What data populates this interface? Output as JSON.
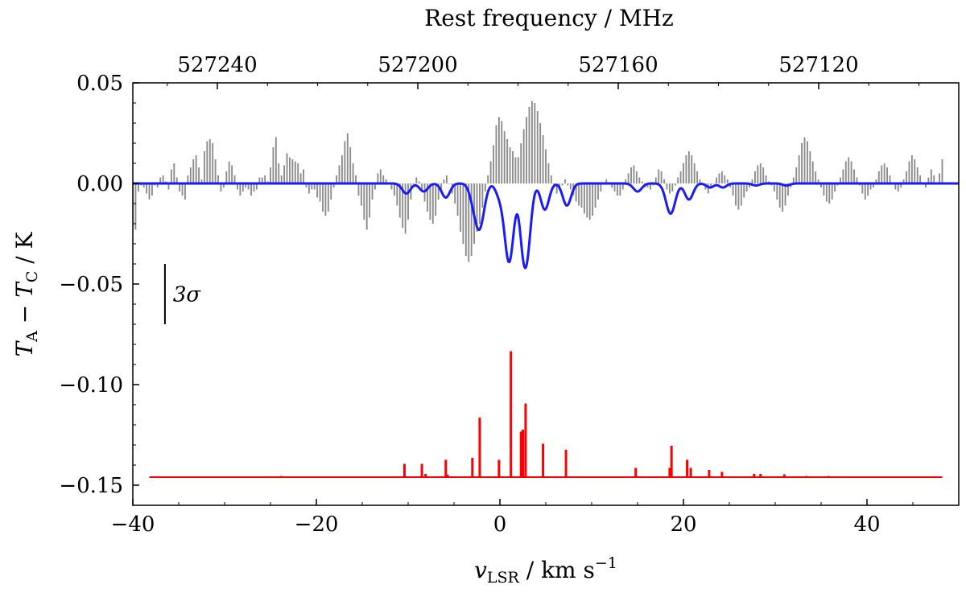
{
  "chart_data": {
    "type": "line",
    "top_axis": {
      "label": "Rest frequency / MHz",
      "ticks": [
        527240,
        527200,
        527160,
        527120
      ],
      "tick_labels": [
        "527240",
        "527200",
        "527160",
        "527120"
      ]
    },
    "bottom_axis": {
      "label": "v_LSR / km s^-1",
      "label_parts": {
        "symbol": "v",
        "sub": "LSR",
        "unit": " / km s",
        "sup": "−1"
      },
      "xlim": [
        -40,
        50
      ],
      "ticks": [
        -40,
        -20,
        0,
        20,
        40
      ],
      "tick_labels": [
        "−40",
        "−20",
        "0",
        "20",
        "40"
      ]
    },
    "left_axis": {
      "label": "T_A − T_C / K",
      "label_parts": {
        "t1": "T",
        "s1": "A",
        "mid": " − ",
        "t2": "T",
        "s2": "C",
        "unit": " / K"
      },
      "ylim": [
        -0.16,
        0.05
      ],
      "ticks": [
        0.05,
        0.0,
        -0.05,
        -0.1,
        -0.15
      ],
      "tick_labels": [
        "0.05",
        "0.00",
        "−0.05",
        "−0.10",
        "−0.15"
      ]
    },
    "sigma_bar": {
      "label": "3σ",
      "x": -36.5,
      "y_top": -0.04,
      "y_bottom": -0.07
    },
    "series": [
      {
        "name": "observed spectrum",
        "style": "histogram",
        "color": "#8c8c8c",
        "x_start": -40.0,
        "x_step": 0.3,
        "values": [
          -0.022,
          -0.023,
          -0.004,
          -0.001,
          -0.002,
          -0.005,
          -0.008,
          -0.006,
          -0.001,
          -0.002,
          0.003,
          0.004,
          0.001,
          -0.003,
          0.007,
          0.01,
          0.003,
          -0.004,
          -0.006,
          -0.008,
          0.004,
          0.008,
          0.012,
          0.014,
          0.008,
          0.002,
          0.016,
          0.021,
          0.022,
          0.02,
          0.012,
          0.004,
          -0.004,
          -0.002,
          0.006,
          0.011,
          0.009,
          0.004,
          -0.003,
          -0.006,
          -0.004,
          -0.002,
          -0.003,
          -0.006,
          -0.004,
          -0.003,
          0.003,
          0.003,
          0.004,
          0.001,
          0.008,
          0.018,
          0.023,
          0.01,
          0.004,
          0.009,
          0.015,
          0.013,
          0.012,
          0.011,
          0.01,
          0.005,
          0.007,
          -0.002,
          -0.005,
          -0.003,
          -0.003,
          -0.007,
          -0.009,
          -0.014,
          -0.016,
          -0.014,
          -0.008,
          -0.002,
          0.004,
          0.009,
          0.014,
          0.021,
          0.025,
          0.018,
          0.01,
          0.004,
          -0.006,
          -0.011,
          -0.018,
          -0.023,
          -0.017,
          -0.008,
          -0.003,
          0.005,
          0.007,
          0.004,
          0.002,
          0.0,
          -0.003,
          -0.006,
          -0.011,
          -0.017,
          -0.022,
          -0.025,
          -0.018,
          -0.008,
          -0.002,
          0.003,
          0.001,
          -0.004,
          -0.009,
          -0.014,
          -0.018,
          -0.02,
          -0.016,
          -0.008,
          -0.003,
          0.002,
          0.004,
          0.0,
          -0.005,
          -0.01,
          -0.016,
          -0.024,
          -0.03,
          -0.036,
          -0.039,
          -0.036,
          -0.03,
          -0.024,
          -0.02,
          -0.012,
          -0.004,
          0.004,
          0.011,
          0.019,
          0.029,
          0.033,
          0.031,
          0.026,
          0.022,
          0.018,
          0.016,
          0.013,
          0.013,
          0.02,
          0.027,
          0.033,
          0.038,
          0.041,
          0.04,
          0.036,
          0.03,
          0.024,
          0.017,
          0.01,
          0.004,
          -0.002,
          -0.005,
          -0.003,
          -0.001,
          0.002,
          -0.001,
          -0.003,
          -0.006,
          -0.009,
          -0.011,
          -0.012,
          -0.015,
          -0.017,
          -0.018,
          -0.016,
          -0.012,
          -0.008,
          -0.004,
          0.0,
          0.002,
          0.0,
          -0.002,
          -0.004,
          -0.006,
          -0.006,
          -0.003,
          0.002,
          0.005,
          0.008,
          0.009,
          0.006,
          0.003,
          0.001,
          -0.002,
          -0.002,
          -0.003,
          -0.001,
          0.003,
          0.007,
          0.006,
          0.002,
          -0.003,
          -0.005,
          -0.004,
          -0.001,
          0.003,
          0.006,
          0.01,
          0.014,
          0.016,
          0.014,
          0.01,
          0.006,
          0.002,
          0.0,
          -0.003,
          -0.005,
          -0.002,
          0.0,
          0.003,
          0.005,
          0.006,
          0.004,
          0.002,
          -0.002,
          -0.006,
          -0.011,
          -0.013,
          -0.011,
          -0.007,
          -0.004,
          -0.002,
          0.002,
          0.006,
          0.009,
          0.01,
          0.008,
          0.004,
          0.001,
          -0.001,
          -0.004,
          -0.008,
          -0.012,
          -0.014,
          -0.011,
          -0.006,
          -0.002,
          0.003,
          0.008,
          0.014,
          0.02,
          0.023,
          0.021,
          0.016,
          0.011,
          0.006,
          0.002,
          -0.002,
          -0.006,
          -0.009,
          -0.01,
          -0.008,
          -0.004,
          -0.001,
          0.003,
          0.007,
          0.011,
          0.013,
          0.011,
          0.007,
          0.003,
          -0.001,
          -0.005,
          -0.008,
          -0.006,
          -0.003,
          -0.002,
          0.002,
          0.006,
          0.009,
          0.01,
          0.008,
          0.004,
          0.0,
          -0.003,
          -0.004,
          -0.002,
          0.002,
          0.006,
          0.011,
          0.014,
          0.012,
          0.008,
          0.004,
          0.0,
          -0.002,
          0.003,
          0.007,
          0.004,
          0.0,
          0.005,
          0.012
        ]
      },
      {
        "name": "model fit",
        "style": "line",
        "color": "#1a1aff",
        "baseline": 0.0,
        "components": [
          {
            "v": -10.2,
            "depth": 0.005,
            "width": 0.45
          },
          {
            "v": -8.3,
            "depth": 0.004,
            "width": 0.45
          },
          {
            "v": -5.9,
            "depth": 0.007,
            "width": 0.45
          },
          {
            "v": -2.9,
            "depth": 0.006,
            "width": 0.45
          },
          {
            "v": -2.2,
            "depth": 0.021,
            "width": 0.5
          },
          {
            "v": -0.1,
            "depth": 0.005,
            "width": 0.4
          },
          {
            "v": 1.0,
            "depth": 0.039,
            "width": 0.5
          },
          {
            "v": 2.4,
            "depth": 0.013,
            "width": 0.35
          },
          {
            "v": 2.9,
            "depth": 0.036,
            "width": 0.45
          },
          {
            "v": 4.9,
            "depth": 0.013,
            "width": 0.45
          },
          {
            "v": 7.3,
            "depth": 0.011,
            "width": 0.45
          },
          {
            "v": 15.0,
            "depth": 0.004,
            "width": 0.45
          },
          {
            "v": 18.6,
            "depth": 0.015,
            "width": 0.5
          },
          {
            "v": 20.6,
            "depth": 0.008,
            "width": 0.45
          },
          {
            "v": 22.9,
            "depth": 0.002,
            "width": 0.4
          },
          {
            "v": 24.3,
            "depth": 0.002,
            "width": 0.4
          },
          {
            "v": 27.9,
            "depth": 0.001,
            "width": 0.4
          },
          {
            "v": 31.2,
            "depth": 0.001,
            "width": 0.4
          }
        ]
      },
      {
        "name": "line positions",
        "style": "sticks",
        "color": "#ff0000",
        "baseline": -0.146,
        "baseline_range": [
          -38.2,
          48.2
        ],
        "x": [
          -29.0,
          -26.5,
          -23.8,
          -10.4,
          -8.5,
          -8.1,
          -5.9,
          -5.7,
          -3.0,
          -2.2,
          -0.1,
          1.2,
          2.3,
          2.5,
          2.8,
          4.7,
          7.2,
          14.8,
          18.5,
          18.7,
          20.4,
          20.8,
          22.8,
          24.2,
          27.7,
          28.4,
          31.0,
          33.4,
          35.8
        ],
        "heights": [
          0.0004,
          0.0004,
          0.0006,
          0.0066,
          0.0066,
          0.0016,
          0.0086,
          0.0012,
          0.0096,
          0.0296,
          0.0086,
          0.0626,
          0.0226,
          0.0236,
          0.0366,
          0.0166,
          0.0136,
          0.0046,
          0.0046,
          0.0156,
          0.0086,
          0.0046,
          0.0036,
          0.0026,
          0.0016,
          0.0016,
          0.0014,
          0.0006,
          0.0006
        ]
      }
    ]
  }
}
